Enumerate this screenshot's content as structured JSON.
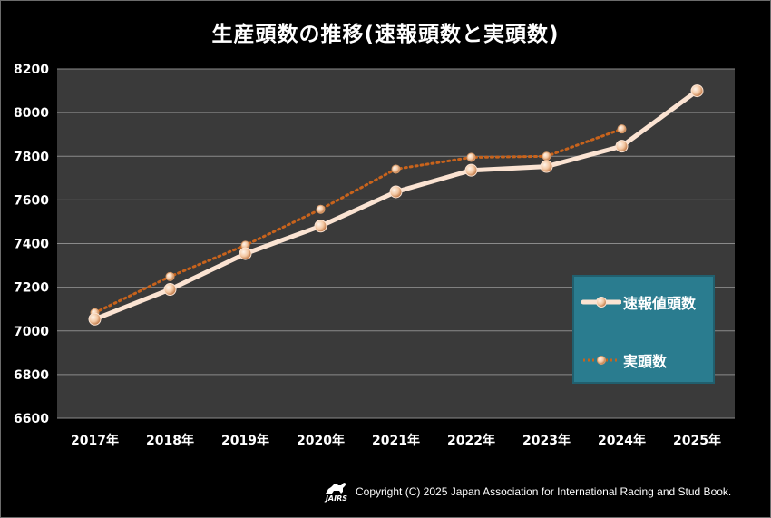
{
  "chart_data": {
    "type": "line",
    "title": "生産頭数の推移(速報頭数と実頭数)",
    "categories": [
      "2017年",
      "2018年",
      "2019年",
      "2020年",
      "2021年",
      "2022年",
      "2023年",
      "2024年",
      "2025年"
    ],
    "series": [
      {
        "name": "速報値頭数",
        "values": [
          7054,
          7190,
          7354,
          7480,
          7637,
          7736,
          7753,
          7846,
          8100
        ],
        "color": "#fbe3d2",
        "style": "solid"
      },
      {
        "name": "実頭数",
        "values": [
          7083,
          7249,
          7392,
          7557,
          7741,
          7795,
          7800,
          7925,
          null
        ],
        "color": "#c8631c",
        "style": "dotted"
      }
    ],
    "ylim": [
      6600,
      8200
    ],
    "yticks": [
      6600,
      6800,
      7000,
      7200,
      7400,
      7600,
      7800,
      8000,
      8200
    ],
    "grid": true,
    "legend_position": "right",
    "plot_background": "#3a3a3a",
    "xlabel": "",
    "ylabel": ""
  },
  "footer": {
    "copyright": "Copyright (C) 2025 Japan Association for International Racing and Stud Book.",
    "logo_text": "JAIRS"
  }
}
